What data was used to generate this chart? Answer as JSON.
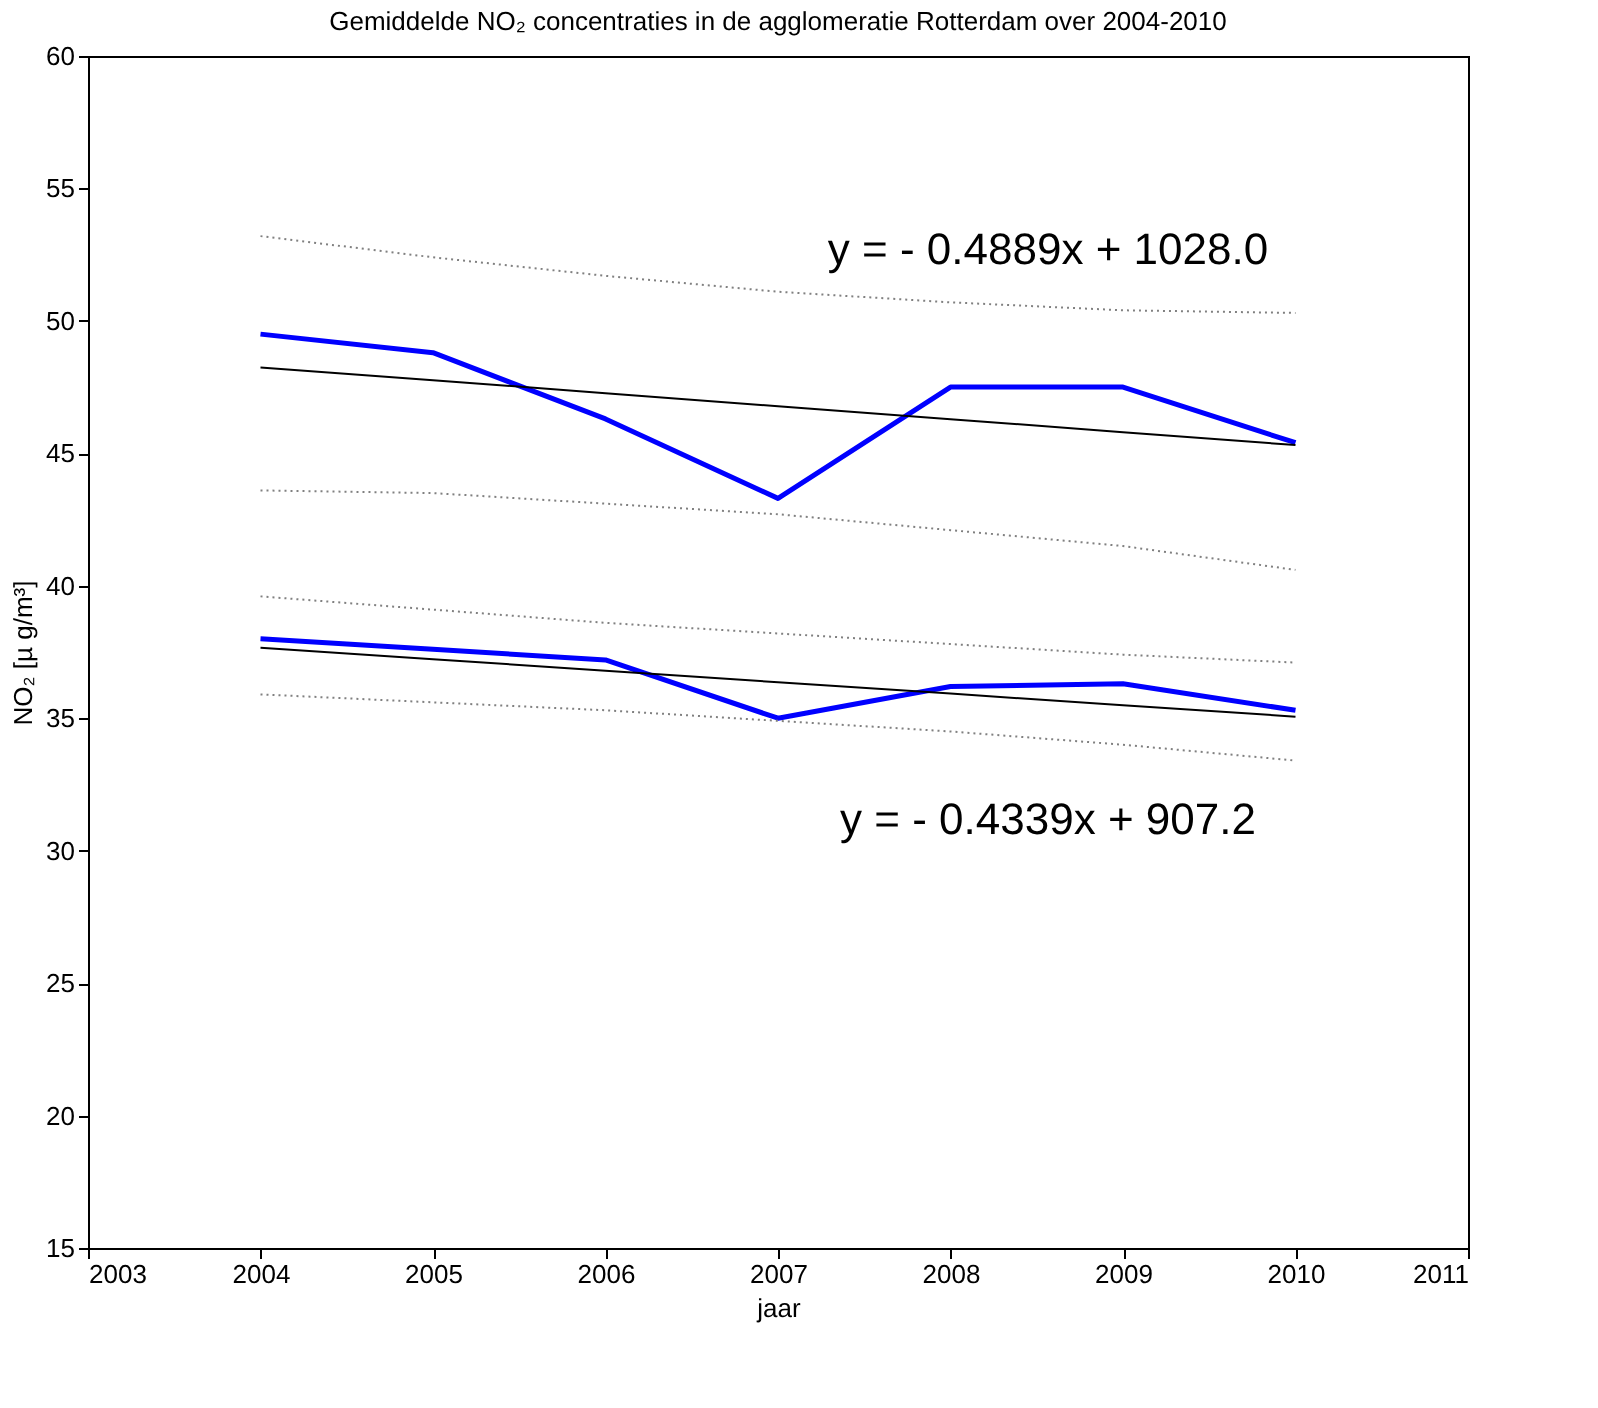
{
  "chart_data": {
    "type": "line",
    "title": "Gemiddelde NO₂ concentraties in de agglomeratie Rotterdam over 2004-2010",
    "xlabel": "jaar",
    "ylabel": "NO₂ [µ g/m³]",
    "x": [
      2004,
      2005,
      2006,
      2007,
      2008,
      2009,
      2010
    ],
    "series": [
      {
        "color": "#0000ff",
        "line_style": "solid",
        "values": [
          49.5,
          48.8,
          46.3,
          43.3,
          47.5,
          47.5,
          45.4
        ]
      },
      {
        "color": "#0000ff",
        "line_style": "solid",
        "values": [
          38.0,
          37.6,
          37.2,
          35.0,
          36.2,
          36.3,
          35.3
        ]
      },
      {
        "color": "#000000",
        "line_style": "solid",
        "values": [
          48.24,
          47.76,
          47.27,
          46.78,
          46.29,
          45.8,
          45.31
        ]
      },
      {
        "color": "#000000",
        "line_style": "solid",
        "values": [
          37.66,
          37.23,
          36.79,
          36.36,
          35.93,
          35.49,
          35.06
        ]
      },
      {
        "color": "#808080",
        "line_style": "dotted",
        "values": [
          53.2,
          52.4,
          51.7,
          51.1,
          50.7,
          50.4,
          50.3
        ]
      },
      {
        "color": "#808080",
        "line_style": "dotted",
        "values": [
          43.6,
          43.5,
          43.1,
          42.7,
          42.1,
          41.5,
          40.6
        ]
      },
      {
        "color": "#808080",
        "line_style": "dotted",
        "values": [
          39.6,
          39.1,
          38.6,
          38.2,
          37.8,
          37.4,
          37.1
        ]
      },
      {
        "color": "#808080",
        "line_style": "dotted",
        "values": [
          35.9,
          35.6,
          35.3,
          34.9,
          34.5,
          34.0,
          33.4
        ]
      }
    ],
    "annotations": [
      "y = - 0.4889x + 1028.0",
      "y = - 0.4339x + 907.2"
    ],
    "xlim": [
      2003,
      2011
    ],
    "xticks": [
      2003,
      2004,
      2005,
      2006,
      2007,
      2008,
      2009,
      2010,
      2011
    ],
    "ylim": [
      15,
      60
    ],
    "yticks": [
      15,
      20,
      25,
      30,
      35,
      40,
      45,
      50,
      55,
      60
    ],
    "grid": false,
    "marker": "none"
  }
}
